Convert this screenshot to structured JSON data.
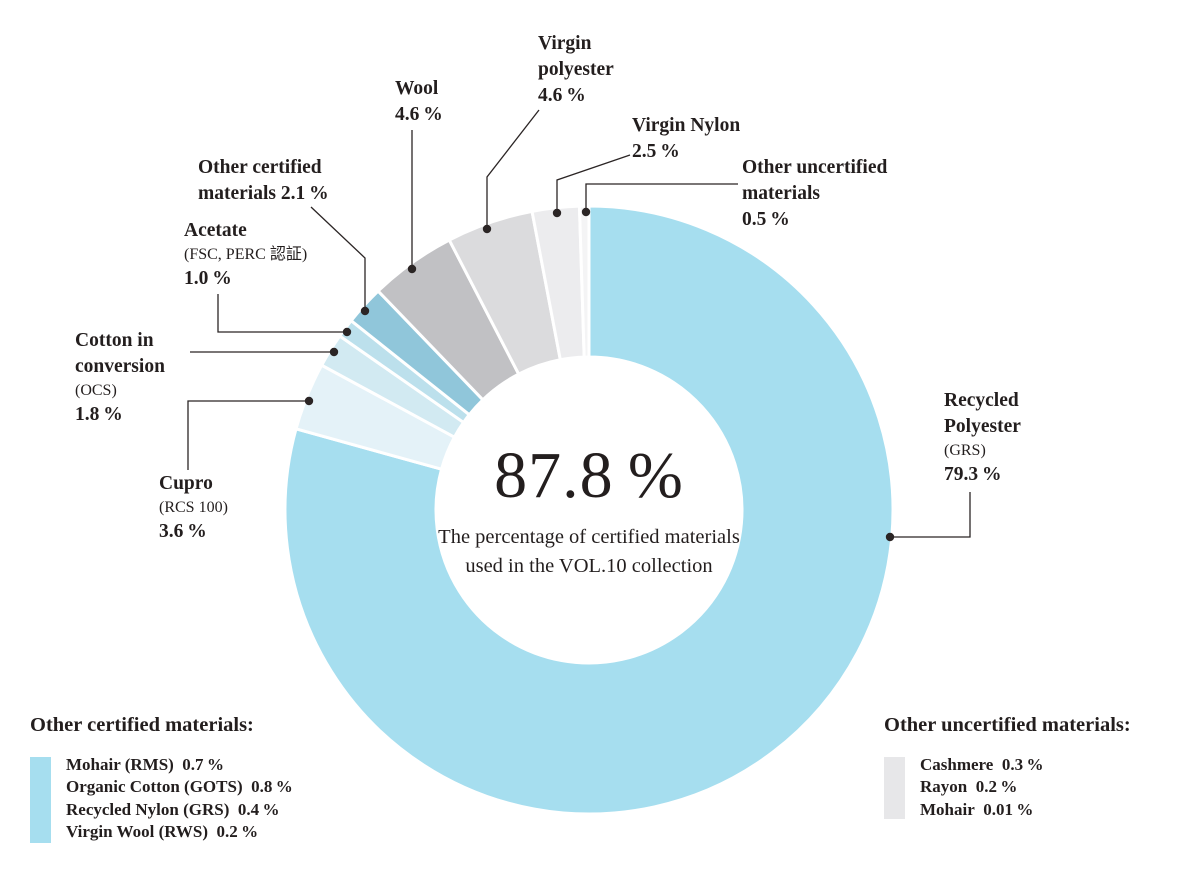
{
  "chart_data": {
    "type": "pie",
    "variant": "donut",
    "unit": "%",
    "start_angle_deg": 0,
    "direction": "clockwise",
    "center": {
      "value": "87.8 %",
      "caption_line1": "The percentage of certified materials",
      "caption_line2": "used in the VOL.10 collection"
    },
    "segments": [
      {
        "id": "recycled_polyester",
        "label": "Recycled Polyester",
        "certification": "GRS",
        "value": 79.3,
        "color": "#A6DEEF"
      },
      {
        "id": "cupro",
        "label": "Cupro",
        "certification": "RCS 100",
        "value": 3.6,
        "color": "#E4F2F8"
      },
      {
        "id": "cotton_in_conversion",
        "label": "Cotton in conversion",
        "certification": "OCS",
        "value": 1.8,
        "color": "#D2EAF2"
      },
      {
        "id": "acetate",
        "label": "Acetate",
        "certification": "FSC, PERC 認証",
        "value": 1.0,
        "color": "#BCE0EC"
      },
      {
        "id": "other_certified",
        "label": "Other certified materials",
        "certification": "",
        "value": 2.1,
        "color": "#90C6DA"
      },
      {
        "id": "wool",
        "label": "Wool",
        "certification": "",
        "value": 4.6,
        "color": "#C1C1C4"
      },
      {
        "id": "virgin_polyester",
        "label": "Virgin polyester",
        "certification": "",
        "value": 4.6,
        "color": "#DBDBDD"
      },
      {
        "id": "virgin_nylon",
        "label": "Virgin Nylon",
        "certification": "",
        "value": 2.5,
        "color": "#ECECEE"
      },
      {
        "id": "other_uncertified",
        "label": "Other uncertified materials",
        "certification": "",
        "value": 0.5,
        "color": "#F4F4F5"
      }
    ],
    "breakdowns": {
      "other_certified": {
        "heading": "Other certified materials:",
        "swatch_color": "#A6DEEF",
        "items": [
          "Mohair (RMS) 0.7 %",
          "Organic Cotton (GOTS) 0.8 %",
          "Recycled Nylon (GRS) 0.4 %",
          "Virgin Wool (RWS) 0.2 %"
        ]
      },
      "other_uncertified": {
        "heading": "Other uncertified materials:",
        "swatch_color": "#E7E7E9",
        "items": [
          "Cashmere 0.3 %",
          "Rayon 0.2 %",
          "Mohair 0.01 %"
        ]
      }
    }
  },
  "callouts": {
    "wool": {
      "lines": [
        {
          "t": "Wool",
          "k": "b"
        },
        {
          "t": "4.6 %",
          "k": "b"
        }
      ]
    },
    "virgin_polyester": {
      "lines": [
        {
          "t": "Virgin",
          "k": "b"
        },
        {
          "t": "polyester",
          "k": "b"
        },
        {
          "t": "4.6 %",
          "k": "b"
        }
      ]
    },
    "virgin_nylon": {
      "lines": [
        {
          "t": "Virgin Nylon",
          "k": "b"
        },
        {
          "t": "2.5 %",
          "k": "b"
        }
      ]
    },
    "other_uncertified": {
      "lines": [
        {
          "t": "Other uncertified",
          "k": "b"
        },
        {
          "t": "materials",
          "k": "b"
        },
        {
          "t": "0.5 %",
          "k": "b"
        }
      ]
    },
    "other_certified": {
      "lines": [
        {
          "t": "Other certified",
          "k": "b"
        },
        {
          "t": "materials 2.1 %",
          "k": "b"
        }
      ]
    },
    "acetate": {
      "lines": [
        {
          "t": "Acetate",
          "k": "b"
        },
        {
          "t": "(FSC, PERC 認証)",
          "k": "c"
        },
        {
          "t": "1.0 %",
          "k": "b"
        }
      ]
    },
    "cotton_in_conversion": {
      "lines": [
        {
          "t": "Cotton in",
          "k": "b"
        },
        {
          "t": "conversion",
          "k": "b"
        },
        {
          "t": "(OCS)",
          "k": "c"
        },
        {
          "t": "1.8 %",
          "k": "b"
        }
      ]
    },
    "cupro": {
      "lines": [
        {
          "t": "Cupro",
          "k": "b"
        },
        {
          "t": "(RCS 100)",
          "k": "c"
        },
        {
          "t": "3.6 %",
          "k": "b"
        }
      ]
    },
    "recycled_polyester": {
      "lines": [
        {
          "t": "Recycled",
          "k": "b"
        },
        {
          "t": "Polyester",
          "k": "b"
        },
        {
          "t": "(GRS)",
          "k": "c"
        },
        {
          "t": "79.3 %",
          "k": "b"
        }
      ]
    }
  }
}
